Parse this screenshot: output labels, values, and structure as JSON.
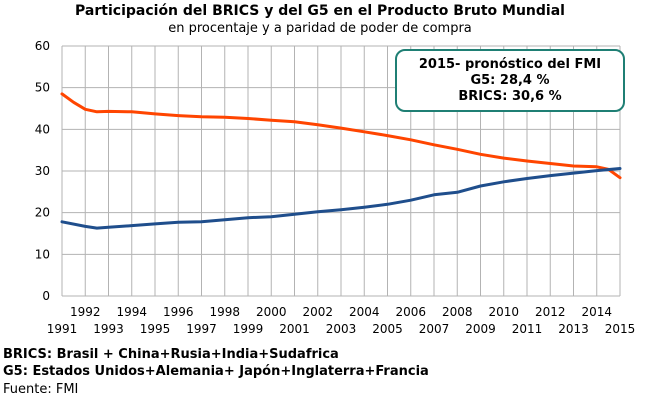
{
  "chart_data": {
    "type": "line",
    "title": "Participación del BRICS y del G5 en el Producto Bruto Mundial",
    "subtitle": "en procentaje y a paridad de poder de compra",
    "xlim": [
      1991,
      2015
    ],
    "ylim": [
      0,
      60
    ],
    "yticks": [
      "0",
      "10",
      "20",
      "30",
      "40",
      "50",
      "60"
    ],
    "xticks_lower": [
      "1991",
      "1993",
      "1995",
      "1997",
      "1999",
      "2001",
      "2003",
      "2005",
      "2007",
      "2009",
      "2011",
      "2013",
      "2015"
    ],
    "xticks_upper": [
      "1992",
      "1994",
      "1996",
      "1998",
      "2000",
      "2002",
      "2004",
      "2006",
      "2008",
      "2010",
      "2012",
      "2014"
    ],
    "grid": true,
    "series": [
      {
        "key": "g5",
        "color": "#ff4500",
        "x": [
          1991,
          1991.5,
          1992,
          1992.5,
          1993,
          1994,
          1995,
          1996,
          1997,
          1998,
          1999,
          2000,
          2001,
          2002,
          2003,
          2004,
          2005,
          2006,
          2007,
          2008,
          2009,
          2010,
          2011,
          2012,
          2013,
          2014,
          2014.5,
          2015
        ],
        "values": [
          48.5,
          46.5,
          44.8,
          44.2,
          44.3,
          44.2,
          43.7,
          43.3,
          43.0,
          42.9,
          42.6,
          42.2,
          41.8,
          41.1,
          40.3,
          39.4,
          38.5,
          37.5,
          36.3,
          35.2,
          34.0,
          33.1,
          32.4,
          31.8,
          31.2,
          31.0,
          30.4,
          28.4
        ]
      },
      {
        "key": "brics",
        "color": "#1f4e8c",
        "x": [
          1991,
          1992,
          1992.5,
          1993,
          1994,
          1995,
          1996,
          1997,
          1998,
          1999,
          2000,
          2001,
          2002,
          2003,
          2004,
          2005,
          2006,
          2007,
          2008,
          2009,
          2010,
          2011,
          2012,
          2013,
          2014,
          2015
        ],
        "values": [
          17.8,
          16.7,
          16.3,
          16.5,
          16.9,
          17.3,
          17.7,
          17.8,
          18.3,
          18.8,
          19.0,
          19.6,
          20.2,
          20.7,
          21.3,
          22.0,
          23.0,
          24.3,
          24.9,
          26.4,
          27.4,
          28.2,
          28.9,
          29.5,
          30.1,
          30.6
        ]
      }
    ]
  },
  "annotation": {
    "line1": "2015- pronóstico del FMI",
    "line2": "G5: 28,4 %",
    "line3": "BRICS: 30,6 %"
  },
  "footer": {
    "brics": "BRICS: Brasil + China+Rusia+India+Sudafrica",
    "g5": "G5: Estados Unidos+Alemania+ Japón+Inglaterra+Francia",
    "source": "Fuente: FMI"
  }
}
